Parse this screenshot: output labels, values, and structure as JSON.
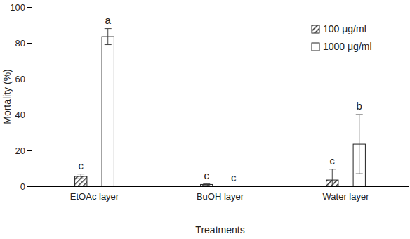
{
  "chart_data": {
    "type": "bar",
    "x_label": "Treatments",
    "y_label": "Mortality (%)",
    "categories": [
      "EtOAc layer",
      "BuOH layer",
      "Water layer"
    ],
    "series": [
      {
        "name": "100 μg/ml",
        "color": "#333333",
        "marker": "hatch",
        "values": [
          5.5,
          1,
          3.5
        ],
        "errors": [
          1.3,
          0.3,
          6
        ],
        "letters": [
          "c",
          "c",
          "c"
        ]
      },
      {
        "name": "1000 μg/ml",
        "color": "#ffffff",
        "values": [
          83.5,
          0,
          23.5
        ],
        "errors": [
          4.5,
          0,
          16.5
        ],
        "letters": [
          "a",
          "c",
          "b"
        ]
      }
    ],
    "ylim": [
      0,
      100
    ],
    "yticks": [
      0,
      20,
      40,
      60,
      80,
      100
    ],
    "grid": false,
    "legend": "top-right"
  }
}
